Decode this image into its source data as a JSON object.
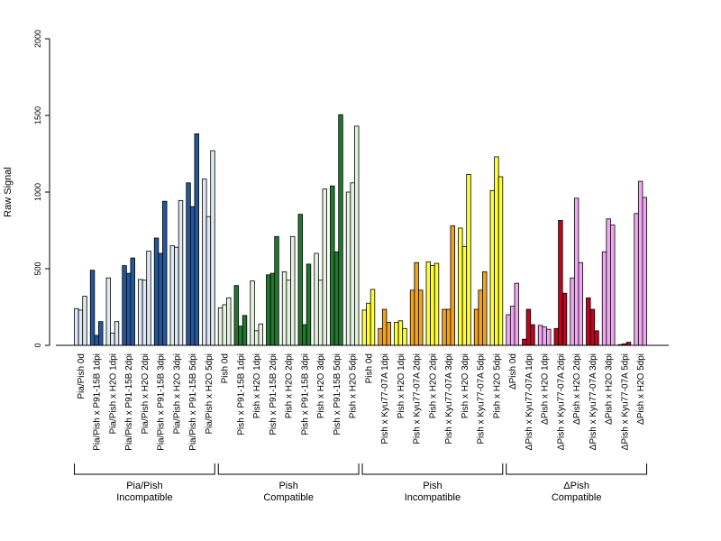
{
  "chart_data": {
    "type": "bar",
    "title": "",
    "ylabel": "Raw Signal",
    "xlabel": "",
    "ylim": [
      0,
      2000
    ],
    "yticks": [
      0,
      500,
      1000,
      1500,
      2000
    ],
    "grid": false,
    "categories": [
      "Pia/Pish 0d",
      "Pia/Pish x P91-15B 1dpi",
      "Pia/Pish x H2O 1dpi",
      "Pia/Pish x P91-15B 2dpi",
      "Pia/Pish x H2O 2dpi",
      "Pia/Pish x P91-15B 3dpi",
      "Pia/Pish x H2O 3dpi",
      "Pia/Pish x P91-15B 5dpi",
      "Pia/Pish x H2O 5dpi",
      "Pish 0d",
      "Pish x P91-15B 1dpi",
      "Pish x H2O 1dpi",
      "Pish x P91-15B 2dpi",
      "Pish x H2O 2dpi",
      "Pish x P91-15B 3dpi",
      "Pish x H2O 3dpi",
      "Pish x P91-15B 5dpi",
      "Pish x H2O 5dpi",
      "Pish 0d",
      "Pish x Kyu77-07A 1dpi",
      "Pish x H2O 1dpi",
      "Pish x Kyu77-07A 2dpi",
      "Pish x H2O 2dpi",
      "Pish x Kyu77-07A 3dpi",
      "Pish x H2O 3dpi",
      "Pish x Kyu77-07A 5dpi",
      "Pish x H2O 5dpi",
      "ΔPish 0d",
      "ΔPish x Kyu77-07A 1dpi",
      "ΔPish x H2O 1dpi",
      "ΔPish x Kyu77-07A 2dpi",
      "ΔPish x H2O 2dpi",
      "ΔPish x Kyu77-07A 3dpi",
      "ΔPish x H2O 3dpi",
      "ΔPish x Kyu77-07A 5dpi",
      "ΔPish x H2O 5dpi"
    ],
    "colors": [
      "#dde8f4",
      "#2358a0",
      "#dde8f4",
      "#2358a0",
      "#dde8f4",
      "#2358a0",
      "#dde8f4",
      "#2358a0",
      "#dde8f4",
      "#e4f2e0",
      "#1e7a2c",
      "#e4f2e0",
      "#1e7a2c",
      "#e4f2e0",
      "#1e7a2c",
      "#e4f2e0",
      "#1e7a2c",
      "#e4f2e0",
      "#ffff33",
      "#f4a21c",
      "#ffff33",
      "#f4a21c",
      "#ffff33",
      "#f4a21c",
      "#ffff33",
      "#f4a21c",
      "#ffff33",
      "#f2a6f2",
      "#c8001e",
      "#f2a6f2",
      "#c8001e",
      "#f2a6f2",
      "#c8001e",
      "#f2a6f2",
      "#c8001e",
      "#f2a6f2"
    ],
    "values": [
      [
        240,
        230,
        320
      ],
      [
        490,
        65,
        155
      ],
      [
        440,
        80,
        155
      ],
      [
        520,
        470,
        570
      ],
      [
        430,
        425,
        615
      ],
      [
        700,
        600,
        940
      ],
      [
        650,
        640,
        945
      ],
      [
        1060,
        905,
        1380
      ],
      [
        1085,
        840,
        1270
      ],
      [
        245,
        265,
        310
      ],
      [
        390,
        125,
        195
      ],
      [
        420,
        95,
        140
      ],
      [
        460,
        470,
        710
      ],
      [
        480,
        425,
        710
      ],
      [
        855,
        135,
        530
      ],
      [
        600,
        425,
        1020
      ],
      [
        1040,
        610,
        1505
      ],
      [
        1000,
        1060,
        1430
      ],
      [
        230,
        275,
        365
      ],
      [
        110,
        235,
        150
      ],
      [
        150,
        160,
        110
      ],
      [
        360,
        540,
        360
      ],
      [
        545,
        520,
        535
      ],
      [
        235,
        235,
        780
      ],
      [
        765,
        645,
        1115
      ],
      [
        235,
        360,
        480
      ],
      [
        1010,
        1230,
        1100
      ],
      [
        200,
        255,
        405
      ],
      [
        40,
        235,
        135
      ],
      [
        130,
        120,
        105
      ],
      [
        110,
        815,
        340
      ],
      [
        440,
        960,
        540
      ],
      [
        310,
        235,
        95
      ],
      [
        610,
        825,
        785
      ],
      [
        5,
        10,
        20
      ],
      [
        860,
        1070,
        965
      ]
    ],
    "groups": [
      {
        "line1": "Pia/Pish",
        "line2": "Incompatible"
      },
      {
        "line1": "Pish",
        "line2": "Compatible"
      },
      {
        "line1": "Pish",
        "line2": "Incompatible"
      },
      {
        "line1": "ΔPish",
        "line2": "Compatible"
      }
    ]
  }
}
